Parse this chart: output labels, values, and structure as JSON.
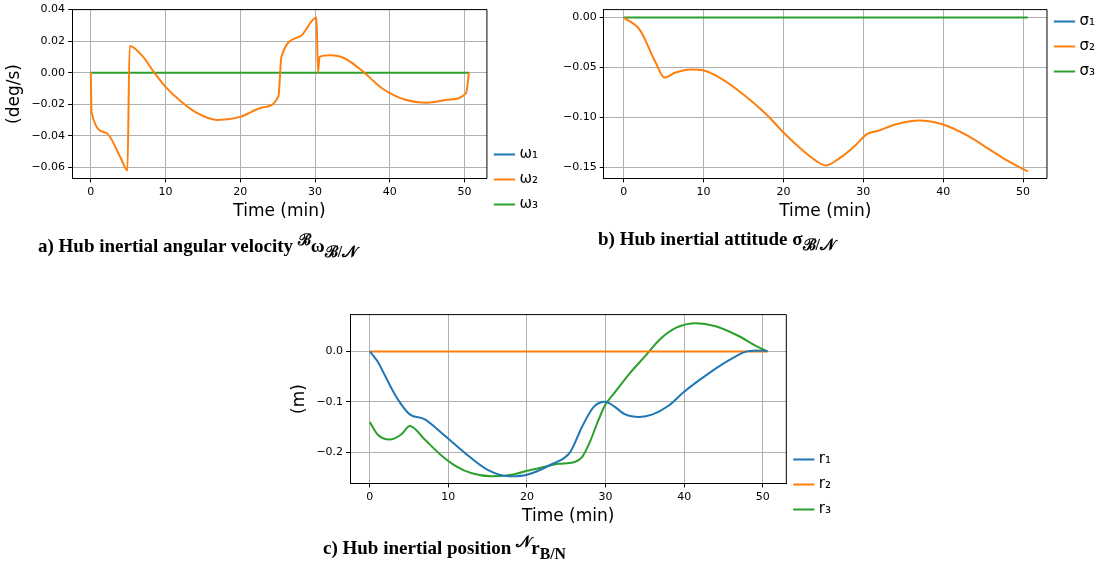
{
  "chart_data": [
    {
      "type": "line",
      "title": "a) Hub inertial angular velocity $^{ℬ}$ω$_{ℬ/𝒩}$",
      "xlabel": "Time (min)",
      "ylabel": "(deg/s)",
      "xlim": [
        -2.5,
        53
      ],
      "xticks": [
        0,
        10,
        20,
        30,
        40,
        50
      ],
      "ylim": [
        -0.067,
        0.04
      ],
      "yticks": [
        {
          "value": -0.06,
          "label": "−0.06"
        },
        {
          "value": -0.04,
          "label": "−0.04"
        },
        {
          "value": -0.02,
          "label": "−0.02"
        },
        {
          "value": 0,
          "label": "0.00"
        },
        {
          "value": 0.02,
          "label": "0.02"
        },
        {
          "value": 0.04,
          "label": "0.04"
        }
      ],
      "grid": true,
      "legend": "bottom right",
      "series": [
        {
          "name": "ω₁",
          "color": "#1f77b4"
        },
        {
          "name": "ω₂",
          "color": "#ff7f0e",
          "x": [
            0,
            0.1,
            2,
            4,
            4.9,
            5.2,
            7,
            8.5,
            10,
            12,
            14,
            17,
            20,
            23,
            25.1,
            25.5,
            28,
            30.2,
            30.4,
            30.6,
            32,
            34,
            36.6,
            39,
            42,
            45,
            48,
            50.2,
            50.6
          ],
          "values": [
            0,
            -0.025,
            -0.038,
            -0.054,
            -0.062,
            0.017,
            0.01,
            0,
            -0.009,
            -0.018,
            -0.025,
            -0.03,
            -0.028,
            -0.022,
            -0.015,
            0.01,
            0.023,
            0.035,
            0,
            0.01,
            0.011,
            0.009,
            0,
            -0.01,
            -0.017,
            -0.019,
            -0.017,
            -0.013,
            0
          ]
        },
        {
          "name": "ω₃",
          "color": "#2ca02c",
          "x": [
            0,
            50.6
          ],
          "values": [
            0,
            0
          ]
        }
      ]
    },
    {
      "type": "line",
      "title": "b) Hub inertial attitude σ$_{ℬ/𝒩}$",
      "xlabel": "Time (min)",
      "xlim": [
        -2.5,
        53
      ],
      "xticks": [
        0,
        10,
        20,
        30,
        40,
        50
      ],
      "ylim": [
        -0.161,
        0.008
      ],
      "yticks": [
        {
          "value": -0.15,
          "label": "−0.15"
        },
        {
          "value": -0.1,
          "label": "−0.10"
        },
        {
          "value": -0.05,
          "label": "−0.05"
        },
        {
          "value": 0,
          "label": "0.00"
        }
      ],
      "grid": true,
      "legend": "top right",
      "series": [
        {
          "name": "σ₁",
          "color": "#1f77b4"
        },
        {
          "name": "σ₂",
          "color": "#ff7f0e",
          "x": [
            0,
            2,
            4,
            5.1,
            6.5,
            8.5,
            10,
            12,
            15,
            18,
            20,
            22,
            24,
            25.3,
            27,
            29,
            30.4,
            32,
            34,
            37,
            40,
            43,
            46,
            48,
            50.6
          ],
          "values": [
            0,
            -0.012,
            -0.045,
            -0.06,
            -0.055,
            -0.052,
            -0.053,
            -0.06,
            -0.077,
            -0.098,
            -0.115,
            -0.13,
            -0.143,
            -0.148,
            -0.141,
            -0.128,
            -0.117,
            -0.113,
            -0.107,
            -0.103,
            -0.107,
            -0.118,
            -0.133,
            -0.143,
            -0.154
          ]
        },
        {
          "name": "σ₃",
          "color": "#2ca02c",
          "x": [
            0,
            50.6
          ],
          "values": [
            0,
            0
          ]
        }
      ]
    },
    {
      "type": "line",
      "title": "c) Hub inertial position $^{𝒩}$r$_{B/N}$",
      "xlabel": "Time (min)",
      "ylabel": "(m)",
      "xlim": [
        -2.5,
        53
      ],
      "xticks": [
        0,
        10,
        20,
        30,
        40,
        50
      ],
      "ylim": [
        -0.262,
        0.073
      ],
      "yticks": [
        {
          "value": -0.2,
          "label": "−0.2"
        },
        {
          "value": -0.1,
          "label": "−0.1"
        },
        {
          "value": 0,
          "label": "0.0"
        }
      ],
      "grid": true,
      "legend": "bottom right",
      "series": [
        {
          "name": "r₁",
          "color": "#1f77b4",
          "x": [
            0,
            1,
            2,
            3,
            4,
            5.1,
            7,
            9,
            12,
            15,
            18,
            20,
            23,
            25.5,
            27,
            28.5,
            30,
            31,
            32.5,
            34.3,
            36,
            38,
            40,
            43,
            46,
            48,
            50,
            50.6
          ],
          "values": [
            0,
            -0.02,
            -0.05,
            -0.08,
            -0.105,
            -0.125,
            -0.135,
            -0.16,
            -0.2,
            -0.235,
            -0.248,
            -0.245,
            -0.225,
            -0.2,
            -0.15,
            -0.11,
            -0.1,
            -0.108,
            -0.125,
            -0.13,
            -0.125,
            -0.108,
            -0.08,
            -0.045,
            -0.015,
            0,
            0.002,
            0
          ]
        },
        {
          "name": "r₂",
          "color": "#ff7f0e",
          "x": [
            0,
            50.6
          ],
          "values": [
            0,
            0
          ]
        },
        {
          "name": "r₃",
          "color": "#2ca02c",
          "x": [
            0,
            1,
            2.5,
            4,
            5.1,
            7,
            9,
            11,
            13,
            15.5,
            18,
            20,
            22,
            24,
            26,
            27,
            28,
            29,
            30,
            31,
            33,
            35,
            37,
            39,
            41.5,
            44,
            47,
            49,
            50.6
          ],
          "values": [
            -0.14,
            -0.165,
            -0.175,
            -0.165,
            -0.148,
            -0.175,
            -0.205,
            -0.228,
            -0.242,
            -0.248,
            -0.245,
            -0.237,
            -0.23,
            -0.223,
            -0.22,
            -0.21,
            -0.18,
            -0.14,
            -0.105,
            -0.085,
            -0.045,
            -0.01,
            0.025,
            0.047,
            0.056,
            0.05,
            0.03,
            0.012,
            0
          ]
        }
      ]
    }
  ]
}
